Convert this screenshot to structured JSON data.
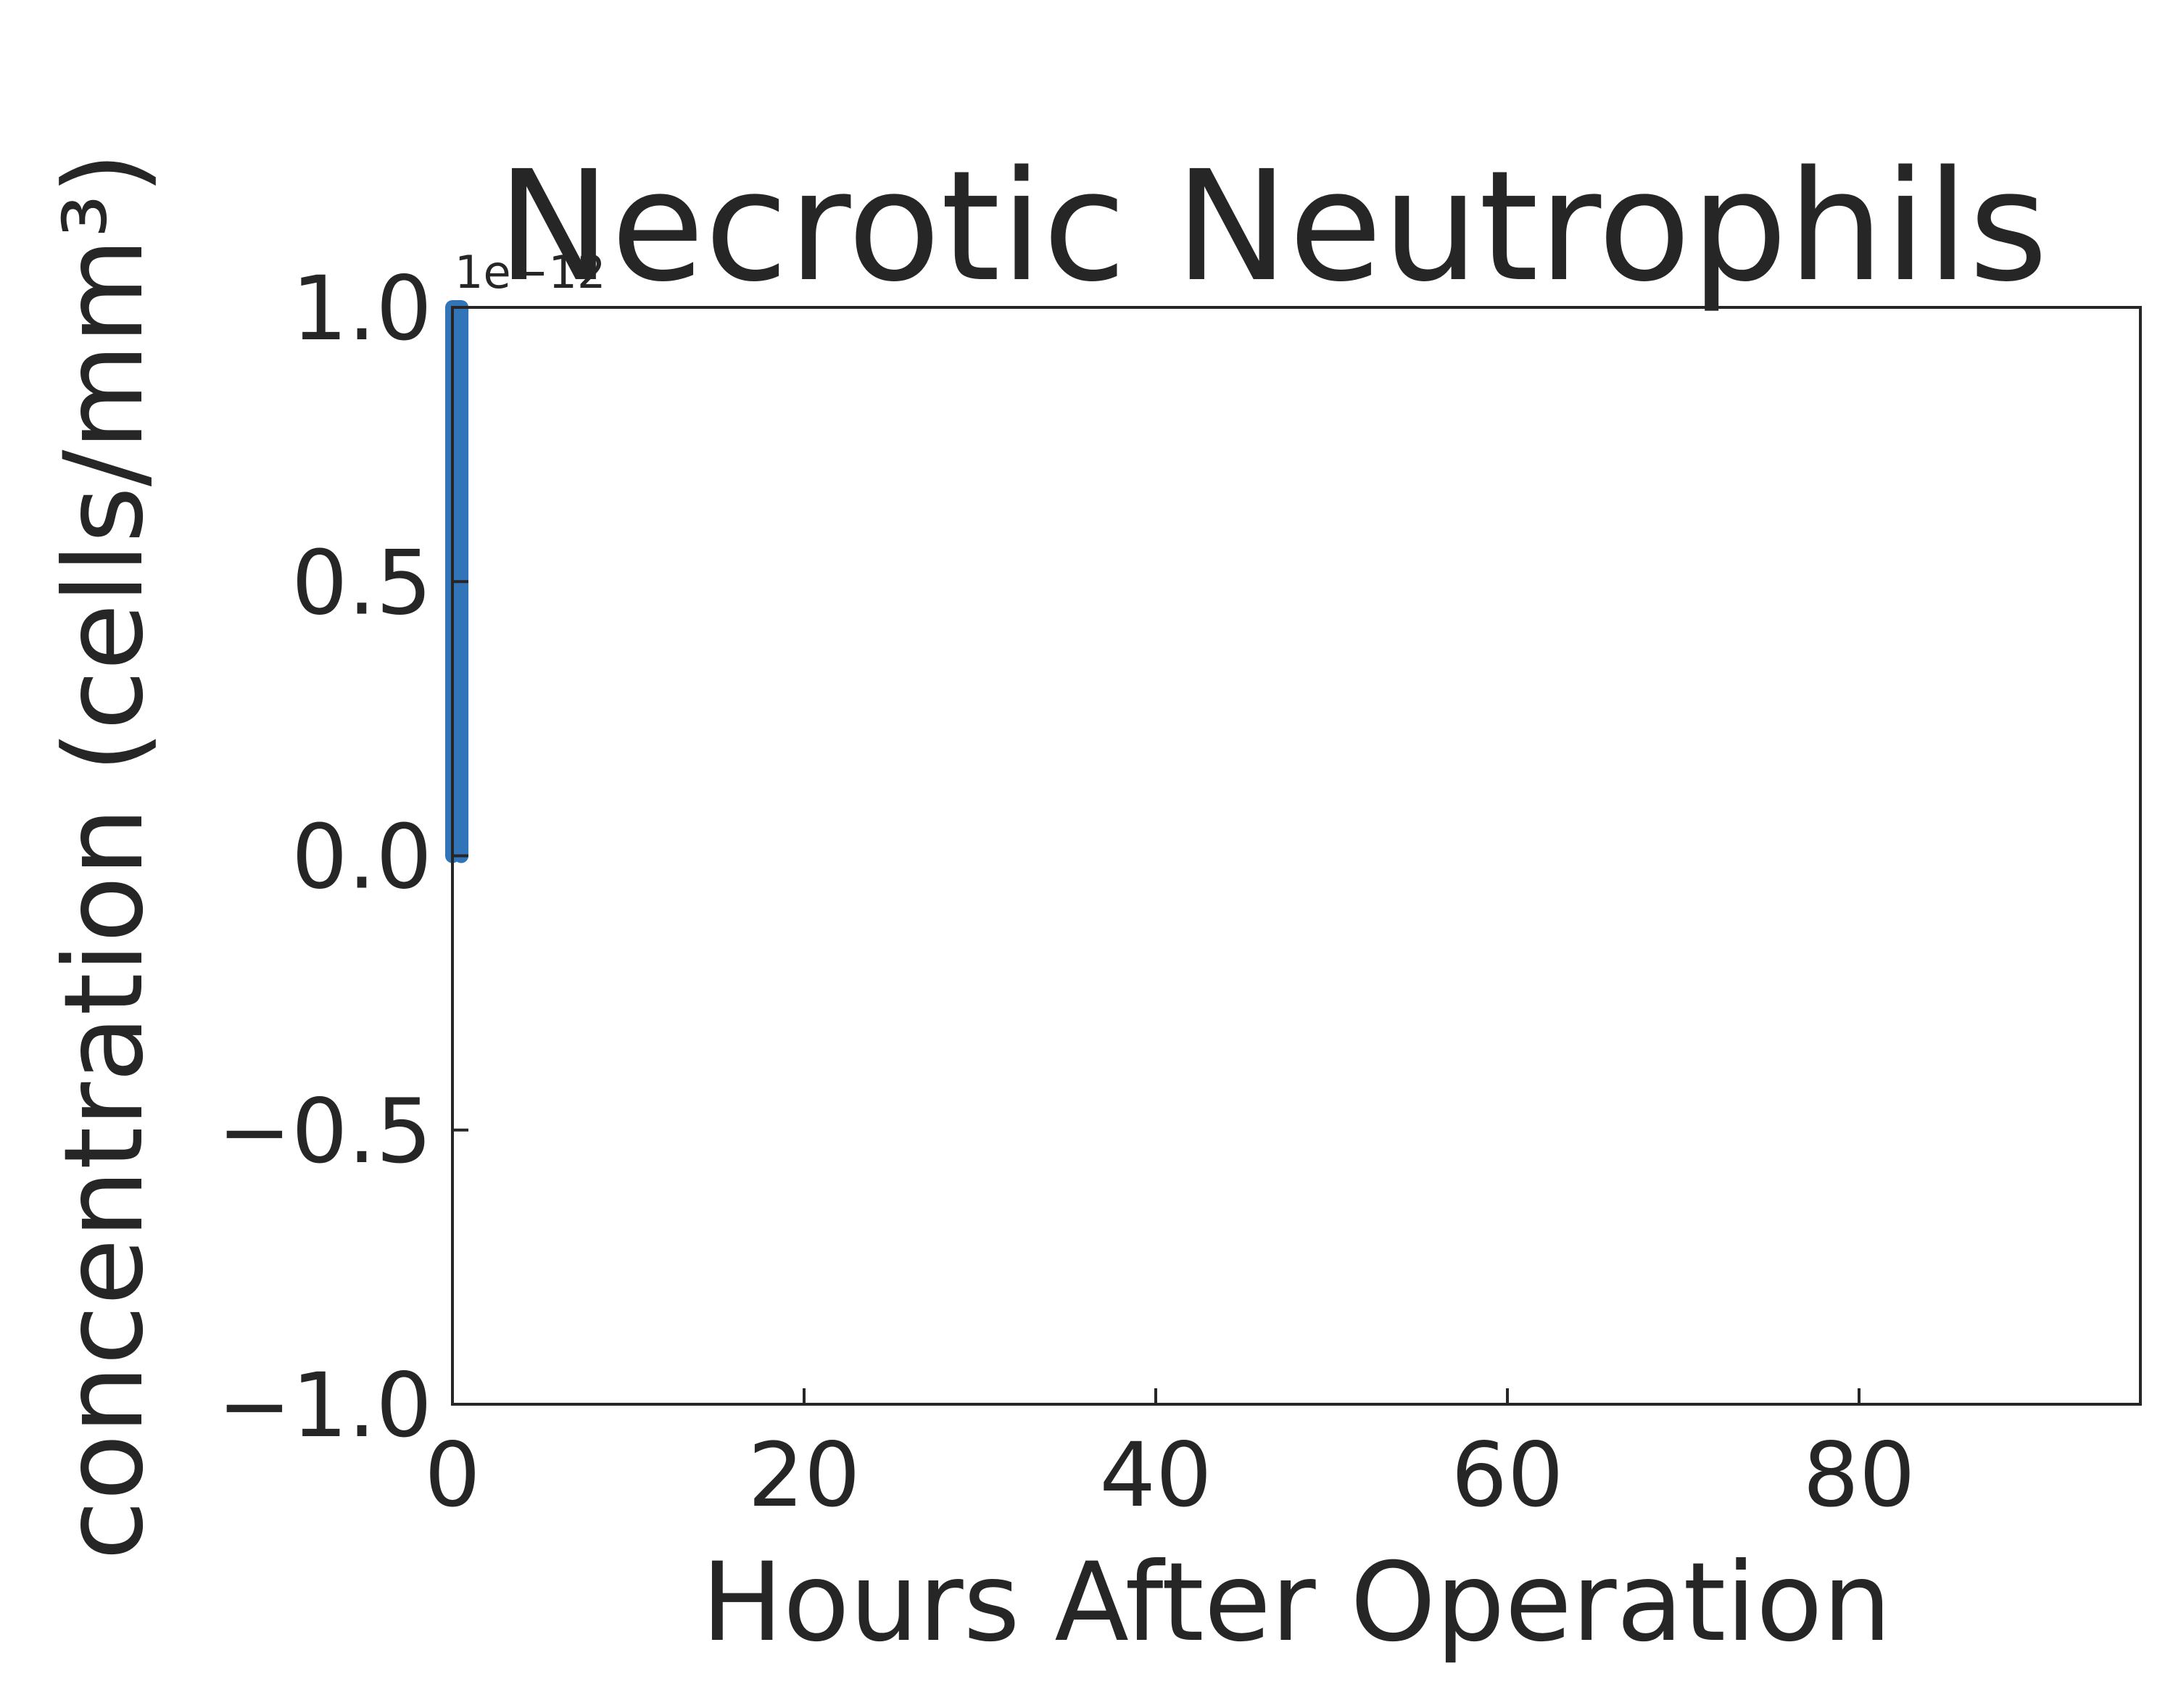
{
  "chart_data": {
    "type": "line",
    "title": "Necrotic Neutrophils",
    "xlabel": "Hours After Operation",
    "ylabel": "concentration (cells/mm³)",
    "y_offset_label": "1e−12",
    "xlim": [
      0,
      96
    ],
    "ylim": [
      -1.0,
      1.0
    ],
    "x_ticks": [
      0,
      20,
      40,
      60,
      80
    ],
    "x_tick_labels": [
      "0",
      "20",
      "40",
      "60",
      "80"
    ],
    "y_ticks": [
      -1.0,
      -0.5,
      0.0,
      0.5,
      1.0
    ],
    "y_tick_labels": [
      "−1.0",
      "−0.5",
      "0.0",
      "0.5",
      "1.0"
    ],
    "grid": false,
    "series": [
      {
        "color": "#3274b8",
        "x": [
          0,
          0,
          0.5,
          0.5
        ],
        "y": [
          0.0,
          1.0,
          1.0,
          0.0
        ]
      }
    ]
  }
}
